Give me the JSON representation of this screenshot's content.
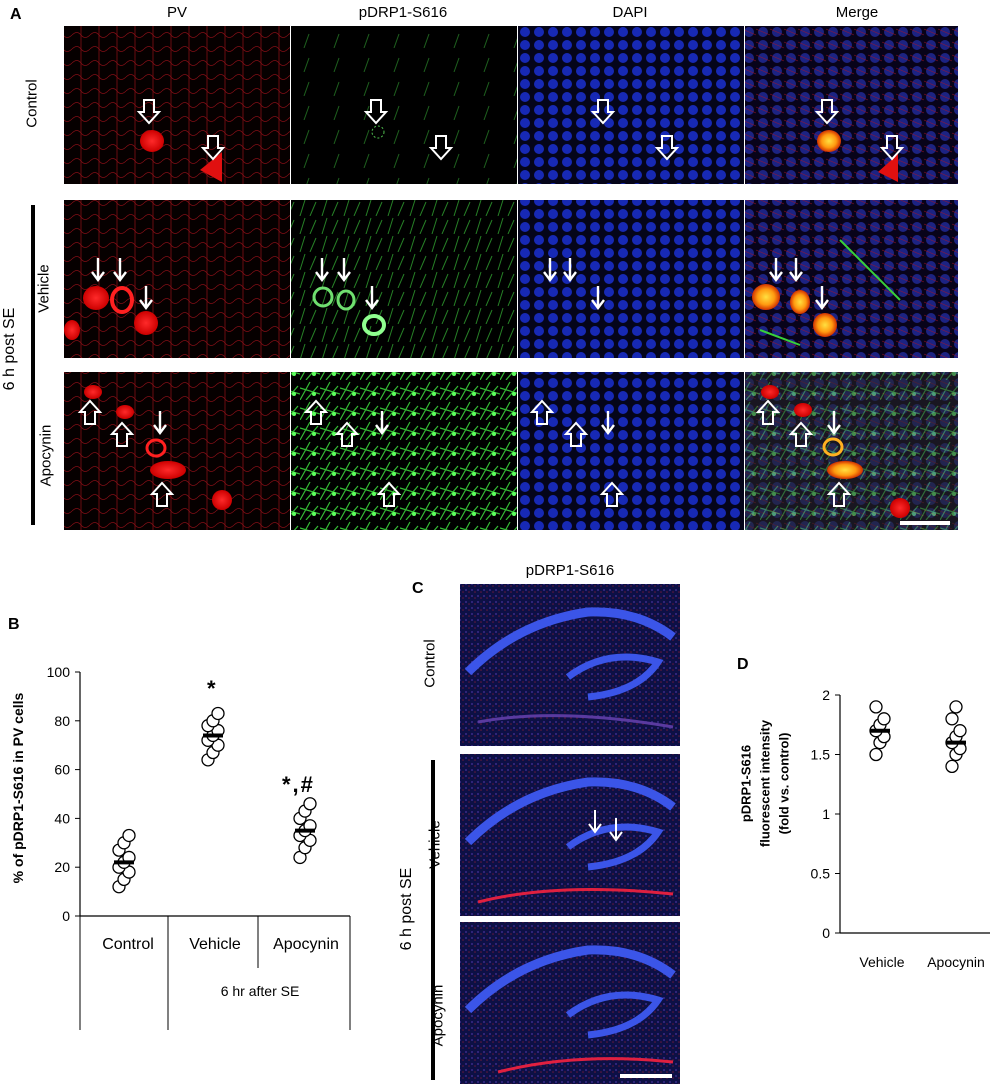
{
  "panelA": {
    "label": "A",
    "columns": [
      "PV",
      "pDRP1-S616",
      "DAPI",
      "Merge"
    ],
    "rows": [
      "Control",
      "Vehicle",
      "Apocynin"
    ],
    "group_label": "6 h post SE"
  },
  "panelB": {
    "label": "B",
    "ylabel": "% of pDRP1-S616 in PV cells",
    "yticks": [
      "0",
      "20",
      "40",
      "60",
      "80",
      "100"
    ],
    "categories": [
      "Control",
      "Vehicle",
      "Apocynin"
    ],
    "group_label": "6 hr after SE",
    "annot_vehicle": "*",
    "annot_apocynin": "*,#"
  },
  "panelC": {
    "label": "C",
    "title": "pDRP1-S616",
    "rows": [
      "Control",
      "Vehicle",
      "Apocynin"
    ],
    "group_label": "6 h post SE"
  },
  "panelD": {
    "label": "D",
    "ylabel_line1": "pDRP1-S616",
    "ylabel_line2": "fluorescent intensity",
    "ylabel_line3": "(fold vs. control)",
    "yticks": [
      "0",
      "0.5",
      "1",
      "1.5",
      "2"
    ],
    "categories": [
      "Vehicle",
      "Apocynin"
    ]
  },
  "chart_data": [
    {
      "type": "scatter",
      "panel": "B",
      "categories": [
        "Control",
        "Vehicle",
        "Apocynin"
      ],
      "ylim": [
        0,
        100
      ],
      "series": [
        {
          "values": [
            [
              12,
              15,
              18,
              20,
              22,
              24,
              27,
              30,
              33
            ],
            [
              64,
              67,
              70,
              72,
              74,
              76,
              78,
              80,
              83
            ],
            [
              24,
              28,
              31,
              33,
              35,
              37,
              40,
              43,
              46
            ]
          ]
        }
      ],
      "means": [
        22,
        74,
        35
      ]
    },
    {
      "type": "scatter",
      "panel": "D",
      "categories": [
        "Vehicle",
        "Apocynin"
      ],
      "ylim": [
        0,
        2
      ],
      "series": [
        {
          "values": [
            [
              1.5,
              1.6,
              1.65,
              1.7,
              1.75,
              1.8,
              1.9
            ],
            [
              1.4,
              1.5,
              1.55,
              1.6,
              1.65,
              1.7,
              1.8,
              1.9
            ]
          ]
        }
      ],
      "means": [
        1.7,
        1.6
      ]
    }
  ]
}
